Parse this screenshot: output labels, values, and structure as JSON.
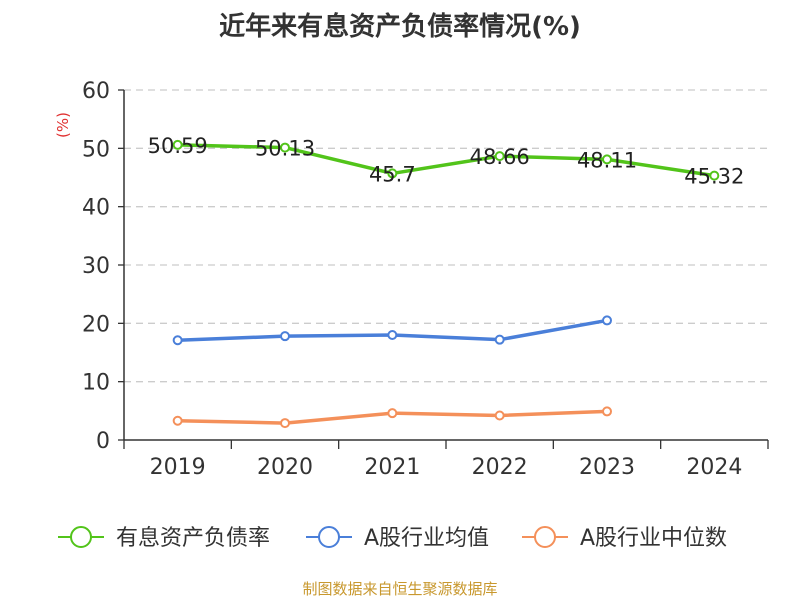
{
  "chart_data": {
    "type": "line",
    "title": "近年来有息资产负债率情况(%)",
    "ylabel": "(%)",
    "xlabel": "",
    "categories": [
      "2019",
      "2020",
      "2021",
      "2022",
      "2023",
      "2024"
    ],
    "ylim": [
      0,
      60
    ],
    "yticks": [
      0,
      10,
      20,
      30,
      40,
      50,
      60
    ],
    "grid": true,
    "legend_position": "bottom",
    "series": [
      {
        "name": "有息资产负债率",
        "color": "#52c41a",
        "values": [
          50.59,
          50.13,
          45.7,
          48.66,
          48.11,
          45.32
        ],
        "labels": [
          "50.59",
          "50.13",
          "45.7",
          "48.66",
          "48.11",
          "45.32"
        ]
      },
      {
        "name": "A股行业均值",
        "color": "#4a7fd9",
        "values": [
          17.1,
          17.8,
          18.0,
          17.2,
          20.5,
          null
        ]
      },
      {
        "name": "A股行业中位数",
        "color": "#f4905a",
        "values": [
          3.3,
          2.9,
          4.6,
          4.2,
          4.9,
          null
        ]
      }
    ]
  },
  "footer": {
    "source": "制图数据来自恒生聚源数据库"
  }
}
